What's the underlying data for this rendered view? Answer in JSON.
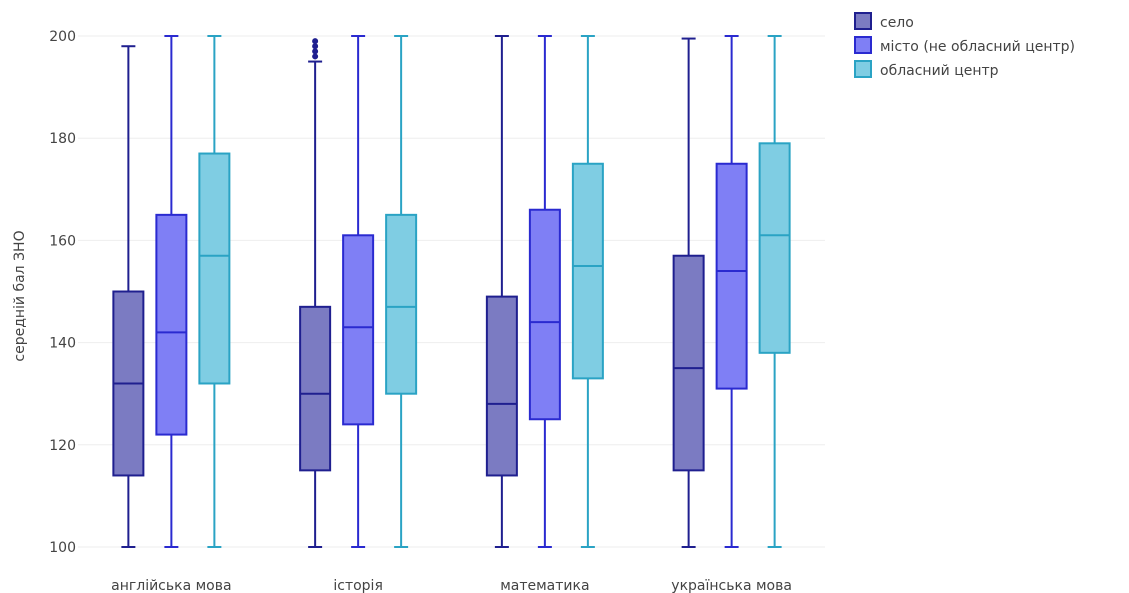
{
  "chart_data": {
    "type": "box",
    "title": "",
    "xlabel": "",
    "ylabel": "середній бал ЗНО",
    "ylim": [
      100,
      200
    ],
    "yticks": [
      100,
      120,
      140,
      160,
      180,
      200
    ],
    "grid": true,
    "legend_position": "top-right",
    "categories": [
      "англійська мова",
      "історія",
      "математика",
      "українська мова"
    ],
    "series": [
      {
        "name": "село",
        "fill": "#7b7bc2",
        "stroke": "#1f1f8f",
        "boxes": [
          {
            "min": 100,
            "q1": 114,
            "median": 132,
            "q3": 150,
            "max": 198,
            "outliers": []
          },
          {
            "min": 100,
            "q1": 115,
            "median": 130,
            "q3": 147,
            "max": 195,
            "outliers": [
              196,
              197,
              198,
              199
            ]
          },
          {
            "min": 100,
            "q1": 114,
            "median": 128,
            "q3": 149,
            "max": 200,
            "outliers": []
          },
          {
            "min": 100,
            "q1": 115,
            "median": 135,
            "q3": 157,
            "max": 199.5,
            "outliers": []
          }
        ]
      },
      {
        "name": "місто (не обласний центр)",
        "fill": "#7f7ff5",
        "stroke": "#2a2ad0",
        "boxes": [
          {
            "min": 100,
            "q1": 122,
            "median": 142,
            "q3": 165,
            "max": 200,
            "outliers": []
          },
          {
            "min": 100,
            "q1": 124,
            "median": 143,
            "q3": 161,
            "max": 200,
            "outliers": []
          },
          {
            "min": 100,
            "q1": 125,
            "median": 144,
            "q3": 166,
            "max": 200,
            "outliers": []
          },
          {
            "min": 100,
            "q1": 131,
            "median": 154,
            "q3": 175,
            "max": 200,
            "outliers": []
          }
        ]
      },
      {
        "name": "обласний центр",
        "fill": "#7fcde3",
        "stroke": "#2aa3c4",
        "boxes": [
          {
            "min": 100,
            "q1": 132,
            "median": 157,
            "q3": 177,
            "max": 200,
            "outliers": []
          },
          {
            "min": 100,
            "q1": 130,
            "median": 147,
            "q3": 165,
            "max": 200,
            "outliers": []
          },
          {
            "min": 100,
            "q1": 133,
            "median": 155,
            "q3": 175,
            "max": 200,
            "outliers": []
          },
          {
            "min": 100,
            "q1": 138,
            "median": 161,
            "q3": 179,
            "max": 200,
            "outliers": []
          }
        ]
      }
    ]
  }
}
